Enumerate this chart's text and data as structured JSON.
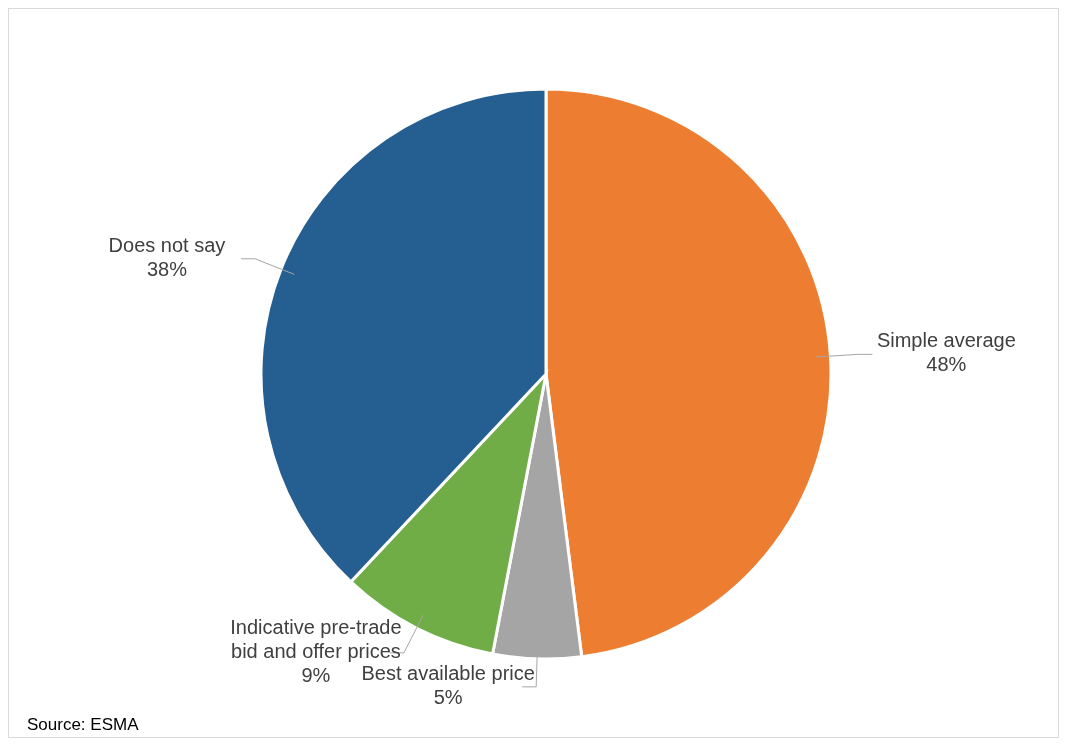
{
  "chart_data": {
    "type": "pie",
    "categories": [
      "Simple average",
      "Best available price",
      "Indicative pre-trade bid and offer prices",
      "Does not say"
    ],
    "values": [
      48,
      5,
      9,
      38
    ],
    "colors": [
      "#ed7d31",
      "#a5a5a5",
      "#70ad47",
      "#255e91"
    ],
    "value_labels": [
      "48%",
      "5%",
      "9%",
      "38%"
    ],
    "annotations": [
      "Source: ESMA"
    ]
  }
}
